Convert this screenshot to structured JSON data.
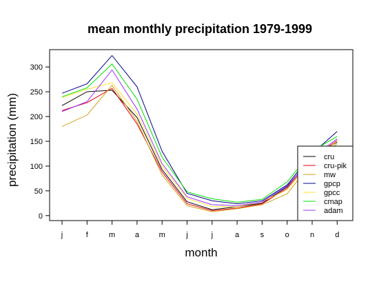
{
  "chart_data": {
    "type": "line",
    "title": "mean monthly precipitation 1979-1999",
    "xlabel": "month",
    "ylabel": "precipitation (mm)",
    "categories": [
      "j",
      "f",
      "m",
      "a",
      "m",
      "j",
      "j",
      "a",
      "s",
      "o",
      "n",
      "d"
    ],
    "yticks": [
      0,
      50,
      100,
      150,
      200,
      250,
      300
    ],
    "ylim": [
      -10,
      335
    ],
    "grid": false,
    "legend_position": "bottom-right",
    "series": [
      {
        "name": "cru",
        "color": "#000000",
        "values": [
          222,
          250,
          253,
          198,
          93,
          28,
          12,
          18,
          25,
          58,
          120,
          148
        ]
      },
      {
        "name": "cru-pik",
        "color": "#e8000b",
        "values": [
          212,
          228,
          257,
          185,
          88,
          24,
          10,
          15,
          24,
          55,
          115,
          152
        ]
      },
      {
        "name": "mw",
        "color": "#d4a017",
        "values": [
          180,
          203,
          263,
          190,
          82,
          20,
          8,
          14,
          22,
          44,
          108,
          145
        ]
      },
      {
        "name": "gpcp",
        "color": "#00008b",
        "values": [
          247,
          266,
          323,
          260,
          130,
          45,
          30,
          24,
          30,
          62,
          125,
          170
        ]
      },
      {
        "name": "gpcc",
        "color": "#ffe135",
        "values": [
          238,
          255,
          268,
          205,
          100,
          35,
          18,
          18,
          28,
          52,
          112,
          150
        ]
      },
      {
        "name": "cmap",
        "color": "#00e000",
        "values": [
          240,
          258,
          306,
          235,
          118,
          48,
          34,
          27,
          33,
          68,
          130,
          160
        ]
      },
      {
        "name": "adam",
        "color": "#9b30ff",
        "values": [
          210,
          230,
          294,
          215,
          105,
          38,
          22,
          20,
          28,
          60,
          118,
          155
        ]
      }
    ]
  }
}
